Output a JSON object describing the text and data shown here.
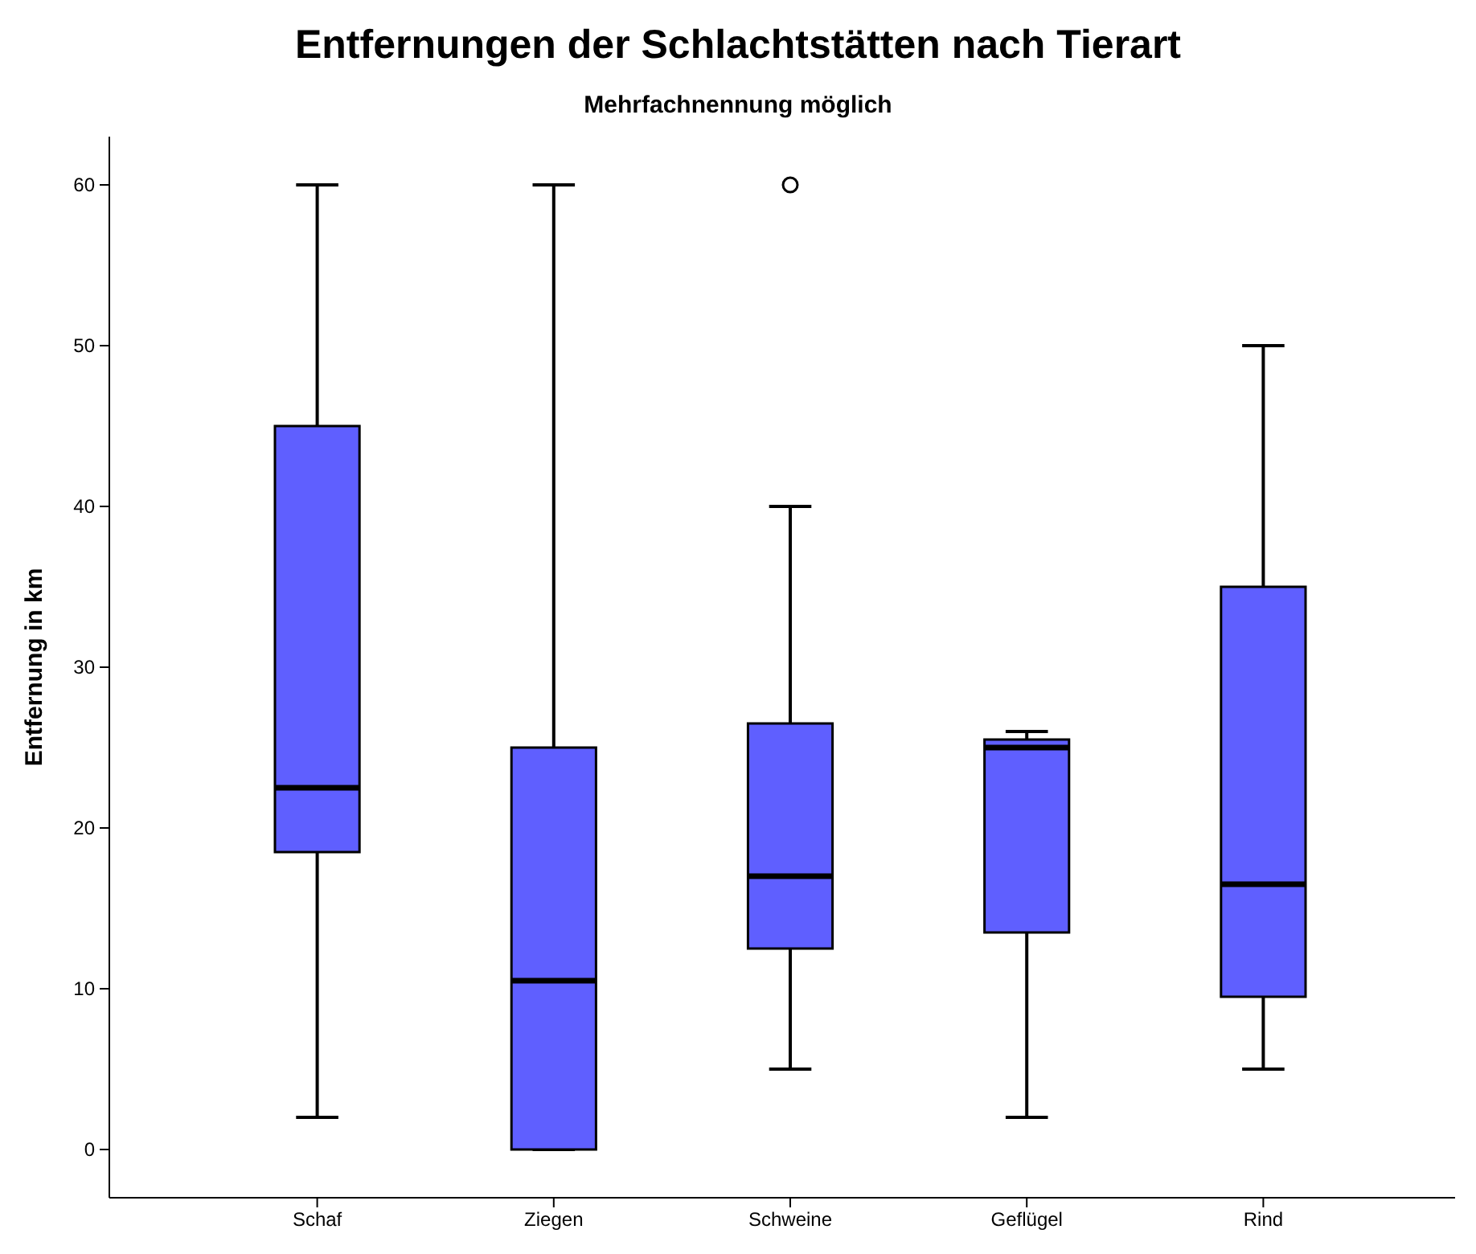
{
  "chart_data": {
    "type": "box",
    "title": "Entfernungen der Schlachtstätten nach Tierart",
    "subtitle": "Mehrfachnennung möglich",
    "ylabel": "Entfernung in km",
    "categories": [
      "Schaf",
      "Ziegen",
      "Schweine",
      "Geflügel",
      "Rind"
    ],
    "boxes": [
      {
        "low": 2,
        "q1": 18.5,
        "median": 22.5,
        "q3": 45,
        "high": 60
      },
      {
        "low": 0,
        "q1": 0,
        "median": 10.5,
        "q3": 25,
        "high": 60
      },
      {
        "low": 5,
        "q1": 12.5,
        "median": 17,
        "q3": 26.5,
        "high": 40,
        "outliers": [
          60
        ]
      },
      {
        "low": 2,
        "q1": 13.5,
        "median": 25,
        "q3": 25.5,
        "high": 26
      },
      {
        "low": 5,
        "q1": 9.5,
        "median": 16.5,
        "q3": 35,
        "high": 50
      }
    ],
    "color": "#5f5fff",
    "ylim": [
      -3,
      63
    ],
    "yticks": [
      0,
      10,
      20,
      30,
      40,
      50,
      60
    ],
    "grid": false
  }
}
